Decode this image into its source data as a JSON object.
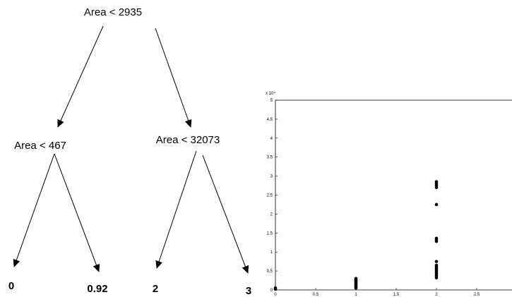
{
  "tree": {
    "root": {
      "label": "Area < 2935"
    },
    "left": {
      "label": "Area < 467"
    },
    "right": {
      "label": "Area < 32073"
    },
    "leaves": [
      "0",
      "0.92",
      "2",
      "3"
    ]
  },
  "chart_data": {
    "type": "scatter",
    "title": "",
    "xlabel": "",
    "ylabel": "",
    "xlim": [
      0,
      3
    ],
    "ylim": [
      0,
      5
    ],
    "y_exponent_label": "x 10⁴",
    "x_ticks": [
      "0",
      "0.5",
      "1",
      "1.5",
      "2",
      "2.5"
    ],
    "y_ticks": [
      "0",
      "0.5",
      "1",
      "1.5",
      "2",
      "2.5",
      "3",
      "3.5",
      "4",
      "4.5",
      "5"
    ],
    "point_color": "#000000",
    "series": [
      {
        "points": [
          [
            0,
            0.02
          ],
          [
            0,
            0.05
          ],
          [
            1,
            0.05
          ],
          [
            1,
            0.08
          ],
          [
            1,
            0.1
          ],
          [
            1,
            0.12
          ],
          [
            1,
            0.14
          ],
          [
            1,
            0.16
          ],
          [
            1,
            0.18
          ],
          [
            1,
            0.2
          ],
          [
            1,
            0.22
          ],
          [
            1,
            0.24
          ],
          [
            1,
            0.26
          ],
          [
            1,
            0.28
          ],
          [
            1,
            0.3
          ],
          [
            2,
            0.32
          ],
          [
            2,
            0.36
          ],
          [
            2,
            0.4
          ],
          [
            2,
            0.44
          ],
          [
            2,
            0.48
          ],
          [
            2,
            0.52
          ],
          [
            2,
            0.56
          ],
          [
            2,
            0.6
          ],
          [
            2,
            0.65
          ],
          [
            2,
            0.75
          ],
          [
            2,
            1.28
          ],
          [
            2,
            1.32
          ],
          [
            2,
            1.36
          ],
          [
            2,
            2.25
          ],
          [
            2,
            2.7
          ],
          [
            2,
            2.75
          ],
          [
            2,
            2.8
          ],
          [
            2,
            2.85
          ]
        ]
      }
    ]
  }
}
